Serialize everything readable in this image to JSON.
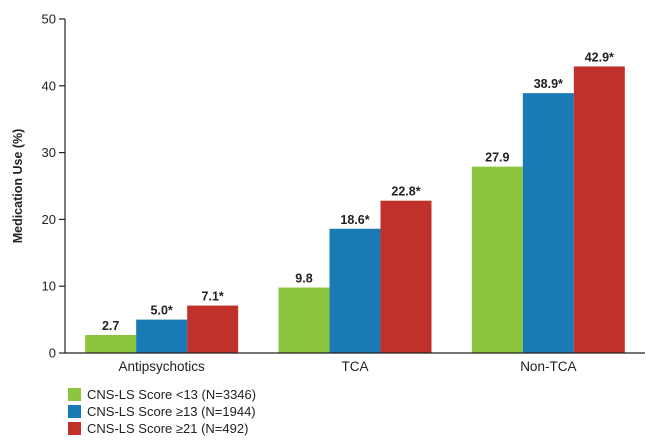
{
  "chart_data": {
    "type": "bar",
    "ylabel": "Medication Use (%)",
    "xlabel": "",
    "ylim": [
      0,
      50
    ],
    "yticks": [
      0,
      10,
      20,
      30,
      40,
      50
    ],
    "categories": [
      "Antipsychotics",
      "TCA",
      "Non-TCA"
    ],
    "series": [
      {
        "name": "CNS-LS Score <13 (N=3346)",
        "color": "#8cc63f",
        "values": [
          2.7,
          9.8,
          27.9
        ],
        "labels": [
          "2.7",
          "9.8",
          "27.9"
        ]
      },
      {
        "name": "CNS-LS Score ≥13 (N=1944)",
        "color": "#1a7ab5",
        "values": [
          5.0,
          18.6,
          38.9
        ],
        "labels": [
          "5.0*",
          "18.6*",
          "38.9*"
        ]
      },
      {
        "name": "CNS-LS Score ≥21 (N=492)",
        "color": "#c1312b",
        "values": [
          7.1,
          22.8,
          42.9
        ],
        "labels": [
          "7.1*",
          "22.8*",
          "42.9*"
        ]
      }
    ],
    "grid": false,
    "legend_position": "bottom-left"
  }
}
